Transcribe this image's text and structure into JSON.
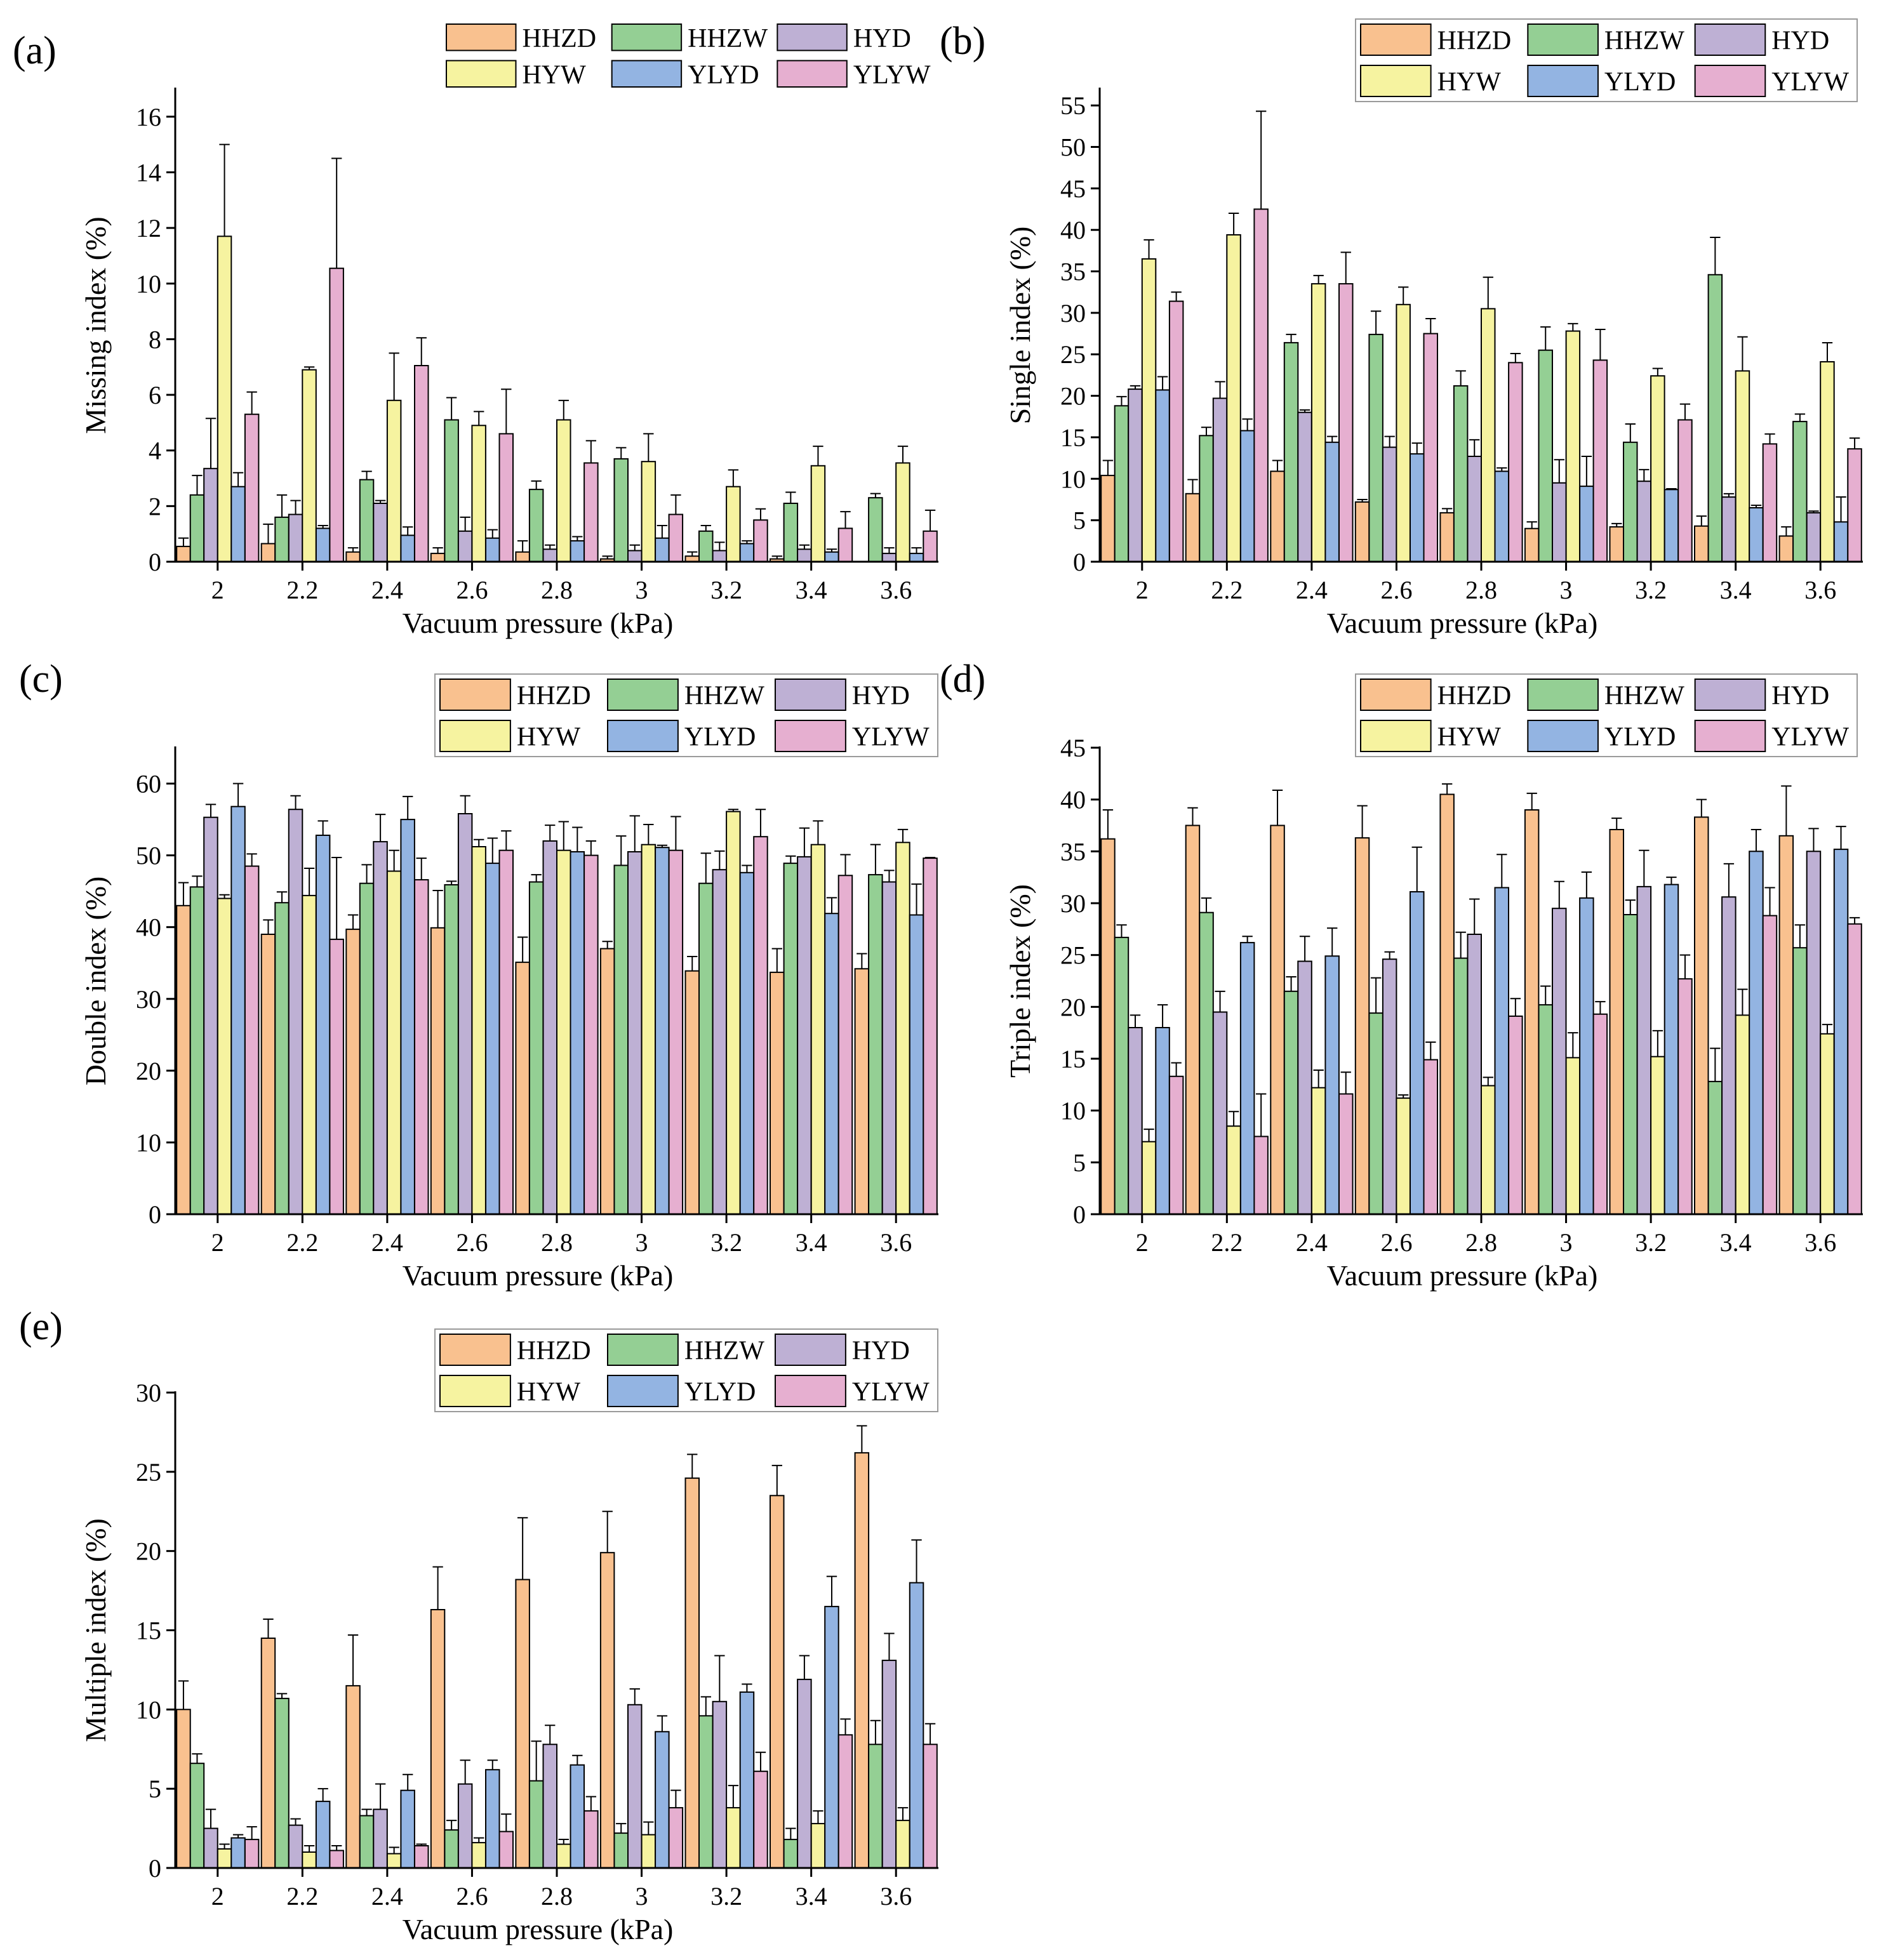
{
  "figure": {
    "legend_entries": [
      "HHZD",
      "HHZW",
      "HYD",
      "HYW",
      "YLYD",
      "YLYW"
    ],
    "series_colors": [
      "#F9C18F",
      "#94CF94",
      "#BEB0D4",
      "#F6F3A0",
      "#93B4E2",
      "#E6AFD0"
    ]
  },
  "chart_data": [
    {
      "type": "bar",
      "panel_label": "(a)",
      "xlabel": "Vacuum pressure (kPa)",
      "ylabel": "Missing index (%)",
      "ylim": [
        0,
        17
      ],
      "yticks": [
        0,
        2,
        4,
        6,
        8,
        10,
        12,
        14,
        16
      ],
      "grid": false,
      "legend_position": "top-right",
      "categories": [
        "2",
        "2.2",
        "2.4",
        "2.6",
        "2.8",
        "3",
        "3.2",
        "3.4",
        "3.6"
      ],
      "series": [
        {
          "name": "HHZD",
          "values": [
            0.55,
            0.65,
            0.35,
            0.3,
            0.35,
            0.1,
            0.2,
            0.1,
            0.0
          ],
          "errors": [
            0.3,
            0.7,
            0.15,
            0.2,
            0.4,
            0.1,
            0.15,
            0.1,
            0.0
          ]
        },
        {
          "name": "HHZW",
          "values": [
            2.4,
            1.6,
            2.95,
            5.1,
            2.6,
            3.7,
            1.1,
            2.1,
            2.3
          ],
          "errors": [
            0.7,
            0.8,
            0.3,
            0.8,
            0.3,
            0.4,
            0.2,
            0.4,
            0.15
          ]
        },
        {
          "name": "HYD",
          "values": [
            3.35,
            1.7,
            2.1,
            1.1,
            0.45,
            0.4,
            0.4,
            0.45,
            0.3
          ],
          "errors": [
            1.8,
            0.5,
            0.1,
            0.5,
            0.15,
            0.2,
            0.3,
            0.15,
            0.2
          ]
        },
        {
          "name": "HYW",
          "values": [
            11.7,
            6.9,
            5.8,
            4.9,
            5.1,
            3.6,
            2.7,
            3.45,
            3.55
          ],
          "errors": [
            3.3,
            0.1,
            1.7,
            0.5,
            0.7,
            1.0,
            0.6,
            0.7,
            0.6
          ]
        },
        {
          "name": "YLYD",
          "values": [
            2.7,
            1.2,
            0.95,
            0.85,
            0.75,
            0.85,
            0.65,
            0.35,
            0.3
          ],
          "errors": [
            0.5,
            0.1,
            0.3,
            0.3,
            0.15,
            0.45,
            0.1,
            0.1,
            0.2
          ]
        },
        {
          "name": "YLYW",
          "values": [
            5.3,
            10.55,
            7.05,
            4.6,
            3.55,
            1.7,
            1.5,
            1.2,
            1.1
          ],
          "errors": [
            0.8,
            3.95,
            1.0,
            1.6,
            0.8,
            0.7,
            0.4,
            0.6,
            0.75
          ]
        }
      ]
    },
    {
      "type": "bar",
      "panel_label": "(b)",
      "xlabel": "Vacuum pressure (kPa)",
      "ylabel": "Single index (%)",
      "ylim": [
        0,
        57
      ],
      "yticks": [
        0,
        5,
        10,
        15,
        20,
        25,
        30,
        35,
        40,
        45,
        50,
        55
      ],
      "grid": false,
      "legend_position": "top-right",
      "categories": [
        "2",
        "2.2",
        "2.4",
        "2.6",
        "2.8",
        "3",
        "3.2",
        "3.4",
        "3.6"
      ],
      "series": [
        {
          "name": "HHZD",
          "values": [
            10.4,
            8.2,
            10.9,
            7.2,
            5.9,
            4.0,
            4.2,
            4.3,
            3.1
          ],
          "errors": [
            1.8,
            1.7,
            1.3,
            0.3,
            0.5,
            0.8,
            0.4,
            1.2,
            1.1
          ]
        },
        {
          "name": "HHZW",
          "values": [
            18.8,
            15.2,
            26.4,
            27.4,
            21.2,
            25.5,
            14.4,
            34.6,
            16.9
          ],
          "errors": [
            1.1,
            1.0,
            1.0,
            2.8,
            1.8,
            2.8,
            2.2,
            4.5,
            0.9
          ]
        },
        {
          "name": "HYD",
          "values": [
            20.8,
            19.7,
            18.0,
            13.8,
            12.7,
            9.5,
            9.7,
            7.8,
            5.9
          ],
          "errors": [
            0.4,
            2.0,
            0.3,
            1.3,
            2.0,
            2.8,
            1.4,
            0.4,
            0.2
          ]
        },
        {
          "name": "HYW",
          "values": [
            36.5,
            39.4,
            33.5,
            31.0,
            30.5,
            27.8,
            22.4,
            23.0,
            24.1
          ],
          "errors": [
            2.3,
            2.6,
            1.0,
            2.1,
            3.8,
            0.9,
            0.9,
            4.1,
            2.3
          ]
        },
        {
          "name": "YLYD",
          "values": [
            20.7,
            15.8,
            14.4,
            13.0,
            10.9,
            9.1,
            8.7,
            6.5,
            4.8
          ],
          "errors": [
            1.6,
            1.4,
            0.7,
            1.3,
            0.4,
            3.6,
            0.1,
            0.3,
            3.0
          ]
        },
        {
          "name": "YLYW",
          "values": [
            31.4,
            42.5,
            33.5,
            27.5,
            24.0,
            24.3,
            17.1,
            14.2,
            13.6
          ],
          "errors": [
            1.1,
            11.8,
            3.8,
            1.8,
            1.1,
            3.7,
            1.9,
            1.2,
            1.3
          ]
        }
      ]
    },
    {
      "type": "bar",
      "panel_label": "(c)",
      "xlabel": "Vacuum pressure (kPa)",
      "ylabel": "Double index (%)",
      "ylim": [
        0,
        65
      ],
      "yticks": [
        0,
        10,
        20,
        30,
        40,
        50,
        60
      ],
      "grid": false,
      "legend_position": "top-right",
      "categories": [
        "2",
        "2.2",
        "2.4",
        "2.6",
        "2.8",
        "3",
        "3.2",
        "3.4",
        "3.6"
      ],
      "series": [
        {
          "name": "HHZD",
          "values": [
            43.0,
            39.0,
            39.7,
            39.9,
            35.1,
            37.0,
            33.9,
            33.7,
            34.2
          ],
          "errors": [
            3.2,
            2.0,
            2.0,
            5.2,
            3.5,
            1.0,
            2.0,
            3.3,
            2.1
          ]
        },
        {
          "name": "HHZW",
          "values": [
            45.6,
            43.4,
            46.1,
            45.9,
            46.3,
            48.6,
            46.1,
            48.9,
            47.3
          ],
          "errors": [
            1.5,
            1.5,
            2.6,
            0.5,
            1.0,
            4.1,
            4.2,
            1.0,
            4.2
          ]
        },
        {
          "name": "HYD",
          "values": [
            55.3,
            56.4,
            51.9,
            55.8,
            52.0,
            50.5,
            48.0,
            49.8,
            46.3
          ],
          "errors": [
            1.8,
            1.9,
            3.8,
            2.5,
            2.2,
            5.0,
            2.6,
            4.0,
            1.6
          ]
        },
        {
          "name": "HYW",
          "values": [
            44.0,
            44.4,
            47.8,
            51.2,
            50.7,
            51.5,
            56.1,
            51.5,
            51.8
          ],
          "errors": [
            0.5,
            3.8,
            2.9,
            1.0,
            4.0,
            2.8,
            0.3,
            3.3,
            1.8
          ]
        },
        {
          "name": "YLYD",
          "values": [
            56.8,
            52.8,
            55.0,
            48.9,
            50.5,
            51.1,
            47.6,
            41.9,
            41.7
          ],
          "errors": [
            3.2,
            2.0,
            3.2,
            3.5,
            3.4,
            0.3,
            1.0,
            2.2,
            4.3
          ]
        },
        {
          "name": "YLYW",
          "values": [
            48.5,
            38.3,
            46.6,
            50.7,
            50.0,
            50.7,
            52.6,
            47.2,
            49.6
          ],
          "errors": [
            1.7,
            11.4,
            3.0,
            2.7,
            2.0,
            4.7,
            3.8,
            2.9,
            0.1
          ]
        }
      ]
    },
    {
      "type": "bar",
      "panel_label": "(d)",
      "xlabel": "Vacuum pressure (kPa)",
      "ylabel": "Triple index (%)",
      "ylim": [
        0,
        45
      ],
      "yticks": [
        0,
        5,
        10,
        15,
        20,
        25,
        30,
        35,
        40,
        45
      ],
      "grid": false,
      "legend_position": "top-right",
      "categories": [
        "2",
        "2.2",
        "2.4",
        "2.6",
        "2.8",
        "3",
        "3.2",
        "3.4",
        "3.6"
      ],
      "series": [
        {
          "name": "HHZD",
          "values": [
            36.2,
            37.5,
            37.5,
            36.3,
            40.5,
            39.0,
            37.1,
            38.3,
            36.5
          ],
          "errors": [
            2.8,
            1.7,
            3.4,
            3.1,
            1.0,
            1.6,
            1.1,
            1.7,
            4.8
          ]
        },
        {
          "name": "HHZW",
          "values": [
            26.7,
            29.1,
            21.5,
            19.4,
            24.7,
            20.2,
            28.9,
            12.8,
            25.7
          ],
          "errors": [
            1.2,
            1.4,
            1.4,
            3.4,
            2.5,
            1.8,
            1.4,
            3.2,
            2.2
          ]
        },
        {
          "name": "HYD",
          "values": [
            18.0,
            19.5,
            24.4,
            24.6,
            27.0,
            29.5,
            31.6,
            30.6,
            35.0
          ],
          "errors": [
            1.2,
            2.0,
            2.4,
            0.7,
            3.4,
            2.6,
            3.5,
            3.2,
            2.2
          ]
        },
        {
          "name": "HYW",
          "values": [
            7.0,
            8.5,
            12.2,
            11.2,
            12.4,
            15.1,
            15.2,
            19.2,
            17.4
          ],
          "errors": [
            1.2,
            1.4,
            1.7,
            0.3,
            0.8,
            2.4,
            2.5,
            2.5,
            0.9
          ]
        },
        {
          "name": "YLYD",
          "values": [
            18.0,
            26.2,
            24.9,
            31.1,
            31.5,
            30.5,
            31.8,
            35.0,
            35.2
          ],
          "errors": [
            2.2,
            0.6,
            2.7,
            4.3,
            3.2,
            2.5,
            0.7,
            2.1,
            2.2
          ]
        },
        {
          "name": "YLYW",
          "values": [
            13.3,
            7.5,
            11.6,
            14.9,
            19.1,
            19.3,
            22.7,
            28.8,
            28.0
          ],
          "errors": [
            1.3,
            4.1,
            2.1,
            1.7,
            1.7,
            1.2,
            2.3,
            2.7,
            0.6
          ]
        }
      ]
    },
    {
      "type": "bar",
      "panel_label": "(e)",
      "xlabel": "Vacuum pressure (kPa)",
      "ylabel": "Multiple index (%)",
      "ylim": [
        0,
        30
      ],
      "yticks": [
        0,
        5,
        10,
        15,
        20,
        25,
        30
      ],
      "grid": false,
      "legend_position": "top-right",
      "categories": [
        "2",
        "2.2",
        "2.4",
        "2.6",
        "2.8",
        "3",
        "3.2",
        "3.4",
        "3.6"
      ],
      "series": [
        {
          "name": "HHZD",
          "values": [
            10.0,
            14.5,
            11.5,
            16.3,
            18.2,
            19.9,
            24.6,
            23.5,
            26.2
          ],
          "errors": [
            1.8,
            1.2,
            3.2,
            2.7,
            3.9,
            2.6,
            1.5,
            1.9,
            1.7
          ]
        },
        {
          "name": "HHZW",
          "values": [
            6.6,
            10.7,
            3.3,
            2.4,
            5.5,
            2.2,
            9.6,
            1.8,
            7.8
          ],
          "errors": [
            0.6,
            0.3,
            0.4,
            0.6,
            2.5,
            0.6,
            1.2,
            0.7,
            1.5
          ]
        },
        {
          "name": "HYD",
          "values": [
            2.5,
            2.7,
            3.7,
            5.3,
            7.8,
            10.3,
            10.5,
            11.9,
            13.1
          ],
          "errors": [
            1.2,
            0.4,
            1.6,
            1.5,
            1.2,
            1.0,
            2.9,
            1.5,
            1.7
          ]
        },
        {
          "name": "HYW",
          "values": [
            1.2,
            1.0,
            0.9,
            1.6,
            1.5,
            2.1,
            3.8,
            2.8,
            3.0
          ],
          "errors": [
            0.3,
            0.4,
            0.4,
            0.3,
            0.3,
            0.8,
            1.4,
            0.8,
            0.8
          ]
        },
        {
          "name": "YLYD",
          "values": [
            1.9,
            4.2,
            4.9,
            6.2,
            6.5,
            8.6,
            11.1,
            16.5,
            18.0
          ],
          "errors": [
            0.2,
            0.8,
            1.0,
            0.6,
            0.6,
            1.0,
            0.5,
            1.9,
            2.7
          ]
        },
        {
          "name": "YLYW",
          "values": [
            1.8,
            1.1,
            1.4,
            2.3,
            3.6,
            3.8,
            6.1,
            8.4,
            7.8
          ],
          "errors": [
            0.8,
            0.3,
            0.1,
            1.1,
            0.9,
            1.1,
            1.2,
            1.0,
            1.3
          ]
        }
      ]
    }
  ]
}
